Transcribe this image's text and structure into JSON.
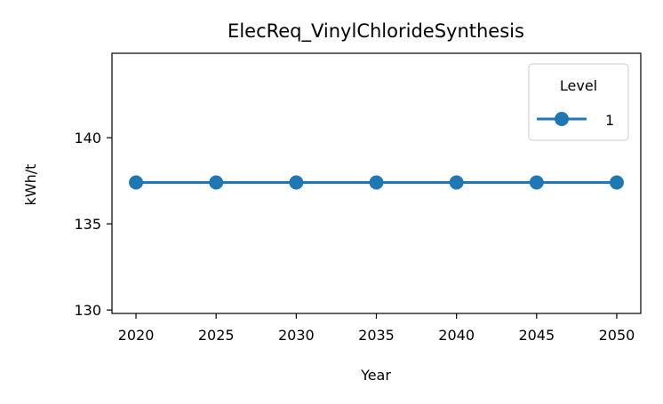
{
  "chart_data": {
    "type": "line",
    "title": "ElecReq_VinylChlorideSynthesis",
    "xlabel": "Year",
    "ylabel": "kWh/t",
    "x": [
      2020,
      2025,
      2030,
      2035,
      2040,
      2045,
      2050
    ],
    "xlim": [
      2018.5,
      2051.5
    ],
    "ylim": [
      129.8,
      144.9
    ],
    "xticks": [
      2020,
      2025,
      2030,
      2035,
      2040,
      2045,
      2050
    ],
    "yticks": [
      130,
      135,
      140
    ],
    "grid": false,
    "legend": {
      "title": "Level",
      "position": "top-right"
    },
    "series": [
      {
        "name": "1",
        "color": "#1f77b4",
        "marker": "circle",
        "values": [
          137.4,
          137.4,
          137.4,
          137.4,
          137.4,
          137.4,
          137.4
        ]
      }
    ]
  }
}
